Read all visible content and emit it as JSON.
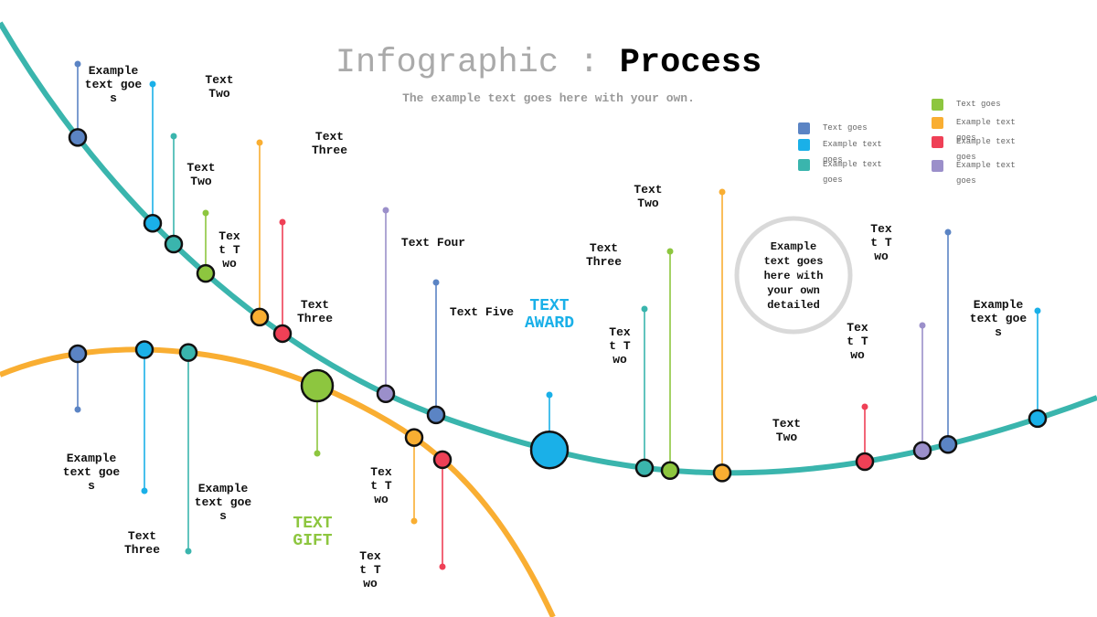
{
  "header": {
    "title_light": "Infographic :",
    "title_bold": "Process",
    "subtitle": "The example text goes here with your own."
  },
  "legend": [
    {
      "label": "Text goes"
    },
    {
      "label": "Example text goes"
    },
    {
      "label": "Example text goes"
    },
    {
      "label": "Text goes"
    },
    {
      "label": "Example text goes"
    },
    {
      "label": "Example text goes"
    },
    {
      "label": "Example text goes"
    }
  ],
  "labels": [
    "Example text goes",
    "Text Two",
    "Text Two",
    "Text Two",
    "Text Three",
    "Text Three",
    "Text Four",
    "Text Five",
    "Text Two",
    "Text Three",
    "Text Two",
    "Text Two",
    "Text Two",
    "Text Two",
    "Example text goes",
    "Example text goes",
    "Example text goes",
    "Text Three",
    "Text Two",
    "Text Two"
  ],
  "highlights": [
    "TEXT AWARD",
    "TEXT GIFT"
  ],
  "callout": "Example text goes here with your own detailed"
}
